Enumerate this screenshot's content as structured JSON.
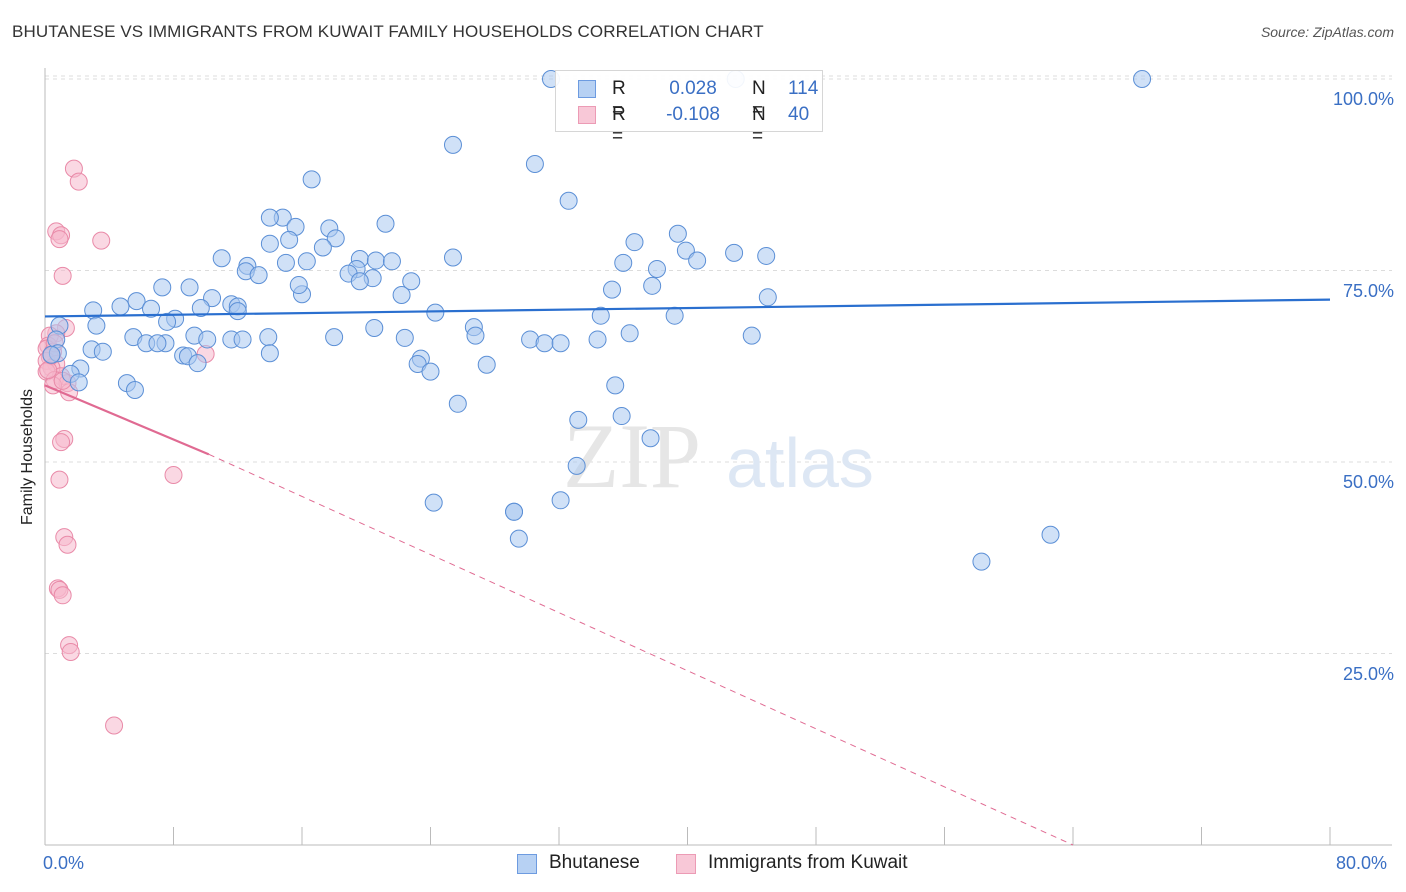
{
  "title": "BHUTANESE VS IMMIGRANTS FROM KUWAIT FAMILY HOUSEHOLDS CORRELATION CHART",
  "source": "Source: ZipAtlas.com",
  "watermark": {
    "zip": "ZIP",
    "atlas": "atlas"
  },
  "colors": {
    "blue_fill": "#aac8f0",
    "blue_stroke": "#5b8fd6",
    "blue_line": "#2a6fcf",
    "pink_fill": "#f6b8cc",
    "pink_stroke": "#e98aa8",
    "pink_line": "#e06a92",
    "tick_text": "#3a6fc4",
    "grid": "#dcdcdc"
  },
  "legend": {
    "r_label": "R =",
    "n_label": "N =",
    "blue": {
      "r": "0.028",
      "n": "114"
    },
    "pink": {
      "r": "-0.108",
      "n": "40"
    }
  },
  "bottom_legend": {
    "blue": "Bhutanese",
    "pink": "Immigrants from Kuwait"
  },
  "chart_data": {
    "type": "scatter",
    "title": "BHUTANESE VS IMMIGRANTS FROM KUWAIT FAMILY HOUSEHOLDS CORRELATION CHART",
    "xlabel": "",
    "ylabel": "Family Households",
    "xlim": [
      0,
      80
    ],
    "ylim": [
      0,
      103
    ],
    "x_tick_labels": {
      "left": "0.0%",
      "right": "80.0%"
    },
    "y_ticks": [
      {
        "value": 100,
        "label": "100.0%"
      },
      {
        "value": 75,
        "label": "75.0%"
      },
      {
        "value": 50,
        "label": "50.0%"
      },
      {
        "value": 25,
        "label": "25.0%"
      }
    ],
    "series": [
      {
        "name": "Bhutanese",
        "color": "blue",
        "points": [
          [
            31.5,
            100
          ],
          [
            43.0,
            100
          ],
          [
            68.3,
            100
          ],
          [
            25.4,
            91.4
          ],
          [
            30.5,
            88.9
          ],
          [
            16.6,
            86.9
          ],
          [
            32.6,
            84.1
          ],
          [
            14.8,
            81.9
          ],
          [
            21.2,
            81.1
          ],
          [
            15.6,
            80.7
          ],
          [
            17.7,
            80.5
          ],
          [
            39.4,
            79.8
          ],
          [
            18.1,
            79.2
          ],
          [
            15.2,
            79.0
          ],
          [
            14.0,
            78.5
          ],
          [
            36.7,
            78.7
          ],
          [
            17.3,
            78.0
          ],
          [
            39.9,
            77.6
          ],
          [
            42.9,
            77.3
          ],
          [
            11.0,
            76.6
          ],
          [
            25.4,
            76.7
          ],
          [
            44.9,
            76.9
          ],
          [
            19.6,
            76.5
          ],
          [
            20.6,
            76.3
          ],
          [
            21.6,
            76.2
          ],
          [
            15.0,
            76.0
          ],
          [
            16.3,
            76.2
          ],
          [
            36.0,
            76.0
          ],
          [
            40.6,
            76.3
          ],
          [
            12.6,
            75.6
          ],
          [
            19.4,
            75.2
          ],
          [
            38.1,
            75.2
          ],
          [
            12.5,
            74.9
          ],
          [
            13.3,
            74.4
          ],
          [
            18.9,
            74.6
          ],
          [
            20.4,
            74.0
          ],
          [
            19.6,
            73.6
          ],
          [
            22.8,
            73.6
          ],
          [
            37.8,
            73.0
          ],
          [
            7.3,
            72.8
          ],
          [
            9.0,
            72.8
          ],
          [
            16.0,
            71.9
          ],
          [
            22.2,
            71.8
          ],
          [
            35.3,
            72.5
          ],
          [
            45.0,
            71.5
          ],
          [
            10.4,
            71.4
          ],
          [
            5.7,
            71.0
          ],
          [
            11.6,
            70.6
          ],
          [
            12.0,
            70.3
          ],
          [
            4.7,
            70.3
          ],
          [
            9.7,
            70.1
          ],
          [
            6.6,
            70.0
          ],
          [
            3.0,
            69.8
          ],
          [
            24.3,
            69.5
          ],
          [
            34.6,
            69.1
          ],
          [
            39.2,
            69.1
          ],
          [
            8.1,
            68.7
          ],
          [
            7.6,
            68.3
          ],
          [
            3.2,
            67.8
          ],
          [
            0.9,
            67.8
          ],
          [
            26.7,
            67.6
          ],
          [
            20.5,
            67.5
          ],
          [
            26.8,
            66.5
          ],
          [
            36.4,
            66.8
          ],
          [
            44.0,
            66.5
          ],
          [
            5.5,
            66.3
          ],
          [
            9.3,
            66.5
          ],
          [
            13.9,
            66.3
          ],
          [
            18.0,
            66.3
          ],
          [
            22.4,
            66.2
          ],
          [
            0.7,
            66.0
          ],
          [
            10.1,
            66.0
          ],
          [
            11.6,
            66.0
          ],
          [
            12.3,
            66.0
          ],
          [
            30.2,
            66.0
          ],
          [
            34.4,
            66.0
          ],
          [
            31.1,
            65.5
          ],
          [
            32.1,
            65.5
          ],
          [
            6.3,
            65.5
          ],
          [
            7.5,
            65.5
          ],
          [
            2.9,
            64.7
          ],
          [
            3.6,
            64.4
          ],
          [
            0.8,
            64.2
          ],
          [
            14.0,
            64.2
          ],
          [
            0.4,
            64.0
          ],
          [
            8.6,
            63.9
          ],
          [
            8.9,
            63.8
          ],
          [
            23.4,
            63.5
          ],
          [
            23.2,
            62.8
          ],
          [
            27.5,
            62.7
          ],
          [
            9.5,
            62.9
          ],
          [
            2.2,
            62.2
          ],
          [
            1.6,
            61.5
          ],
          [
            35.5,
            60.0
          ],
          [
            2.1,
            60.4
          ],
          [
            5.1,
            60.3
          ],
          [
            5.6,
            59.4
          ],
          [
            25.7,
            57.6
          ],
          [
            35.9,
            56.0
          ],
          [
            33.2,
            55.5
          ],
          [
            37.7,
            53.1
          ],
          [
            33.1,
            49.5
          ],
          [
            32.1,
            45.0
          ],
          [
            24.2,
            44.7
          ],
          [
            29.2,
            43.5
          ],
          [
            29.2,
            43.5
          ],
          [
            29.5,
            40.0
          ],
          [
            58.3,
            37.0
          ],
          [
            62.6,
            40.5
          ],
          [
            14.0,
            81.9
          ],
          [
            12.0,
            69.7
          ],
          [
            24.0,
            61.8
          ],
          [
            7.0,
            65.5
          ],
          [
            15.8,
            73.1
          ]
        ]
      },
      {
        "name": "Immigrants from Kuwait",
        "color": "pink",
        "points": [
          [
            1.8,
            88.3
          ],
          [
            2.1,
            86.6
          ],
          [
            0.7,
            80.1
          ],
          [
            1.0,
            79.6
          ],
          [
            0.9,
            79.1
          ],
          [
            3.5,
            78.9
          ],
          [
            1.1,
            74.3
          ],
          [
            1.3,
            67.5
          ],
          [
            0.7,
            66.8
          ],
          [
            0.3,
            66.5
          ],
          [
            0.2,
            65.2
          ],
          [
            0.1,
            64.8
          ],
          [
            0.5,
            64.4
          ],
          [
            10.0,
            64.1
          ],
          [
            0.3,
            63.7
          ],
          [
            0.1,
            63.2
          ],
          [
            0.7,
            62.8
          ],
          [
            0.4,
            62.3
          ],
          [
            0.1,
            61.8
          ],
          [
            1.0,
            61.2
          ],
          [
            0.6,
            60.7
          ],
          [
            1.4,
            60.3
          ],
          [
            0.5,
            60.0
          ],
          [
            1.5,
            59.1
          ],
          [
            1.2,
            53.0
          ],
          [
            1.0,
            52.6
          ],
          [
            8.0,
            48.3
          ],
          [
            0.9,
            47.7
          ],
          [
            1.2,
            40.2
          ],
          [
            1.4,
            39.2
          ],
          [
            0.8,
            33.5
          ],
          [
            0.9,
            33.3
          ],
          [
            1.1,
            32.6
          ],
          [
            1.5,
            26.1
          ],
          [
            1.6,
            25.2
          ],
          [
            4.3,
            15.6
          ],
          [
            0.6,
            65.5
          ],
          [
            0.2,
            62.0
          ],
          [
            1.1,
            60.6
          ],
          [
            0.4,
            63.9
          ]
        ]
      }
    ],
    "trend_lines": [
      {
        "series": "Bhutanese",
        "style": "solid",
        "x": [
          0,
          80
        ],
        "y": [
          69.0,
          71.2
        ]
      },
      {
        "series": "Immigrants from Kuwait",
        "style": "solid",
        "x": [
          0,
          10.2
        ],
        "y": [
          60.0,
          51.0
        ]
      },
      {
        "series": "Immigrants from Kuwait",
        "style": "dashed",
        "x": [
          10.2,
          64.0
        ],
        "y": [
          51.0,
          0
        ]
      }
    ]
  }
}
